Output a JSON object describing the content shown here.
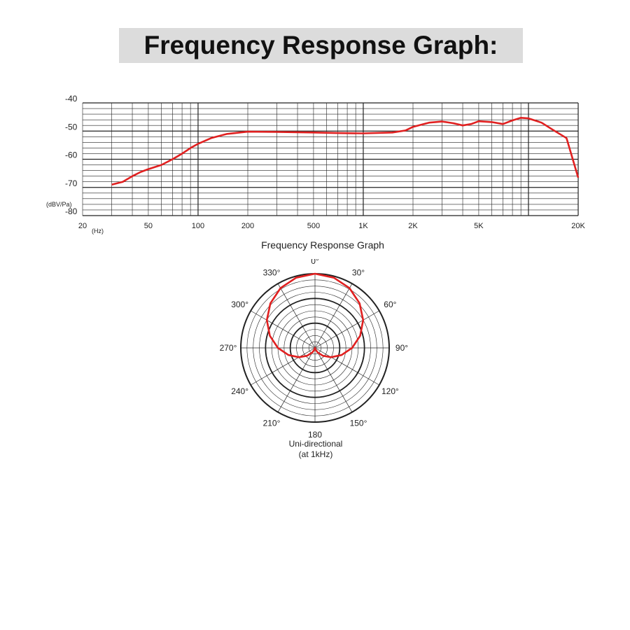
{
  "page": {
    "title": "Frequency Response Graph:"
  },
  "chart_data": [
    {
      "type": "line",
      "xscale": "log",
      "xlim": [
        20,
        20000
      ],
      "ylim": [
        -80,
        -40
      ],
      "ylabel": "(dBV/Pa)",
      "xunit": "(Hz)",
      "caption": "Frequency Response Graph",
      "x_ticks": [
        {
          "value": 20,
          "label": "20"
        },
        {
          "value": 50,
          "label": "50"
        },
        {
          "value": 100,
          "label": "100"
        },
        {
          "value": 200,
          "label": "200"
        },
        {
          "value": 500,
          "label": "500"
        },
        {
          "value": 1000,
          "label": "1K"
        },
        {
          "value": 2000,
          "label": "2K"
        },
        {
          "value": 5000,
          "label": "5K"
        },
        {
          "value": 20000,
          "label": "20K"
        }
      ],
      "y_ticks": [
        {
          "value": -40,
          "label": "-40"
        },
        {
          "value": -50,
          "label": "-50"
        },
        {
          "value": -60,
          "label": "-60"
        },
        {
          "value": -70,
          "label": "-70"
        },
        {
          "value": -80,
          "label": "-80"
        }
      ],
      "grid": true,
      "color": "#e02020",
      "series": [
        {
          "x": [
            30,
            35,
            40,
            45,
            50,
            60,
            70,
            80,
            90,
            100,
            120,
            150,
            200,
            300,
            500,
            700,
            1000,
            1500,
            1800,
            2000,
            2500,
            3000,
            3500,
            4000,
            4500,
            5000,
            6000,
            7000,
            8000,
            9000,
            10000,
            12000,
            14000,
            17000,
            20000
          ],
          "y": [
            -69,
            -68,
            -66,
            -64.5,
            -63.5,
            -62,
            -60,
            -58,
            -56,
            -54.5,
            -52.5,
            -51,
            -50.2,
            -50.3,
            -50.5,
            -50.7,
            -50.8,
            -50.5,
            -49.8,
            -48.5,
            -47,
            -46.6,
            -47.2,
            -48,
            -47.5,
            -46.5,
            -46.8,
            -47.5,
            -46.2,
            -45.3,
            -45.5,
            -47,
            -49.5,
            -52.5,
            -66.5
          ]
        }
      ]
    },
    {
      "type": "polar",
      "angle_ticks": [
        {
          "angle": 0,
          "label": "0°"
        },
        {
          "angle": 30,
          "label": "30°"
        },
        {
          "angle": 60,
          "label": "60°"
        },
        {
          "angle": 90,
          "label": "90°"
        },
        {
          "angle": 120,
          "label": "120°"
        },
        {
          "angle": 150,
          "label": "150°"
        },
        {
          "angle": 180,
          "label": "180"
        },
        {
          "angle": 210,
          "label": "210°"
        },
        {
          "angle": 240,
          "label": "240°"
        },
        {
          "angle": 270,
          "label": "270°"
        },
        {
          "angle": 300,
          "label": "300°"
        },
        {
          "angle": 330,
          "label": "330°"
        }
      ],
      "caption_line1": "Uni-directional",
      "caption_line2": "(at 1kHz)",
      "pattern": "cardioid",
      "series": [
        {
          "angles": [
            0,
            15,
            30,
            45,
            60,
            75,
            90,
            105,
            120,
            135,
            150,
            165,
            180,
            195,
            210,
            225,
            240,
            255,
            270,
            285,
            300,
            315,
            330,
            345,
            360
          ],
          "r": [
            1.0,
            0.98,
            0.93,
            0.85,
            0.75,
            0.63,
            0.5,
            0.37,
            0.25,
            0.15,
            0.07,
            0.02,
            0.0,
            0.02,
            0.07,
            0.15,
            0.25,
            0.37,
            0.5,
            0.63,
            0.75,
            0.85,
            0.93,
            0.98,
            1.0
          ]
        }
      ],
      "color": "#e02020"
    }
  ]
}
